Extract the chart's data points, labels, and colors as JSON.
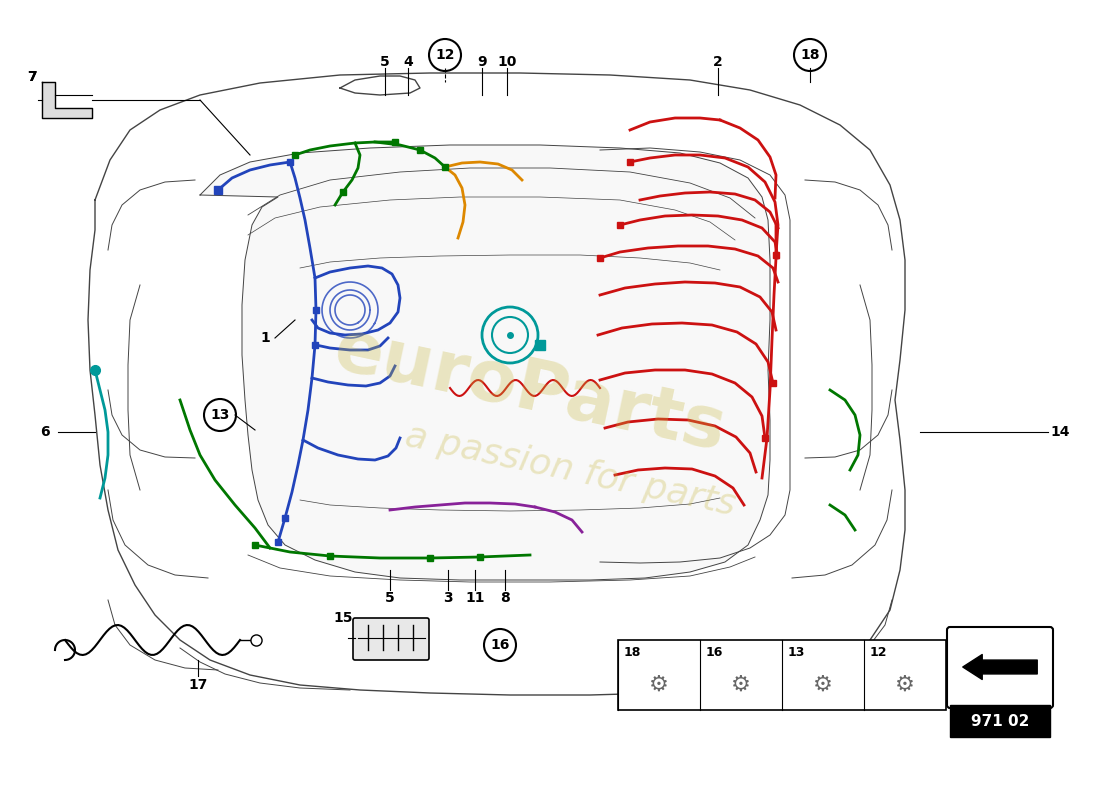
{
  "bg_color": "#ffffff",
  "page_code": "971 02",
  "watermark_color": "#c8b840",
  "watermark_alpha": 0.3,
  "car_color": "#444444",
  "lw_car": 1.0,
  "lw_wire": 2.0,
  "green": "#007700",
  "blue": "#2244bb",
  "red": "#cc1111",
  "orange": "#dd8800",
  "teal": "#009999",
  "purple": "#882299",
  "black": "#000000",
  "label_fs": 10,
  "circle_r": 13,
  "fig_w": 11.0,
  "fig_h": 8.0,
  "dpi": 100
}
